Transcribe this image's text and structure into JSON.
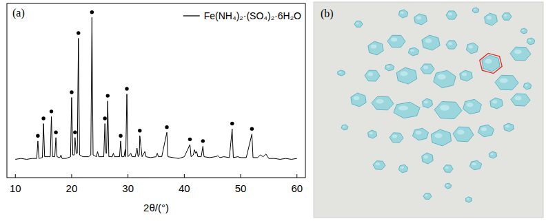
{
  "chart_data": {
    "type": "line",
    "title": "(a)",
    "x_label": "2θ/(°)",
    "xlim": [
      8.5,
      61.5
    ],
    "ylim": [
      0,
      100
    ],
    "xticks": [
      10,
      20,
      30,
      40,
      50,
      60
    ],
    "tick_labels": "x",
    "legend": "upper right",
    "grid": false,
    "series": [
      {
        "name": "Fe(NH₄)₂·(SO₄)₂·6H₂O",
        "color": "#000000",
        "line_style": "solid",
        "x": [
          10,
          11,
          12,
          13,
          13.8,
          14.0,
          14.2,
          14.8,
          15.0,
          15.2,
          16.2,
          16.4,
          16.6,
          17.0,
          17.2,
          17.4,
          17.9,
          18.1,
          18.3,
          19.0,
          19.8,
          20.0,
          20.2,
          20.45,
          20.6,
          20.8,
          21.0,
          21.2,
          21.4,
          22.0,
          23.0,
          23.4,
          23.6,
          23.8,
          24.4,
          24.6,
          24.8,
          25.7,
          25.9,
          26.1,
          26.2,
          26.4,
          26.6,
          27.2,
          27.4,
          27.6,
          28.5,
          28.7,
          28.9,
          29.3,
          29.5,
          29.6,
          29.8,
          30.0,
          30.5,
          30.7,
          31.3,
          31.6,
          31.8,
          32.0,
          32.1,
          32.3,
          32.5,
          33.0,
          33.2,
          34.0,
          35.0,
          35.2,
          35.4,
          36.0,
          36.9,
          37.1,
          38.0,
          39.0,
          40.0,
          41.0,
          41.2,
          41.6,
          41.8,
          42.0,
          42.2,
          42.4,
          43.0,
          43.3,
          43.5,
          44.5,
          45.5,
          46.0,
          46.3,
          47.0,
          48.0,
          48.5,
          48.7,
          49.5,
          50.0,
          51.0,
          52.0,
          52.2,
          53.0,
          53.5,
          54.0,
          54.5,
          55.0,
          56.0,
          57.0,
          58.0,
          59.0,
          60.0
        ],
        "values": [
          10.5,
          11,
          10.5,
          11,
          11,
          21,
          11,
          11.5,
          31,
          12,
          12,
          35,
          12,
          12,
          23,
          12,
          11.5,
          13,
          11,
          11,
          12,
          46,
          13,
          13,
          23,
          14,
          14,
          80,
          13,
          12,
          12,
          13,
          92,
          13,
          12,
          15,
          12,
          12,
          31,
          14,
          14,
          44,
          12,
          12,
          14,
          12,
          12,
          21,
          12,
          12,
          16,
          12,
          48,
          12,
          14,
          12,
          12,
          17,
          12,
          13,
          24,
          18,
          12,
          15,
          12,
          11.5,
          12,
          14,
          12,
          12,
          26,
          12,
          11.5,
          11,
          12,
          19,
          12,
          13,
          16,
          14,
          15,
          12,
          12,
          18,
          12,
          11.5,
          12,
          12.5,
          11.5,
          12,
          11.5,
          28,
          11.5,
          12,
          11.5,
          11.5,
          25,
          11.5,
          11.5,
          13,
          12,
          13.5,
          11,
          11,
          10.5,
          11,
          10.5,
          11
        ]
      },
      {
        "type": "scatter",
        "marker": "circle",
        "color": "#000000",
        "x": [
          14.0,
          15.0,
          16.4,
          17.2,
          20.0,
          20.6,
          21.2,
          23.6,
          25.9,
          26.4,
          28.7,
          29.8,
          32.1,
          36.9,
          41.0,
          43.3,
          48.5,
          52.0
        ],
        "values": [
          24,
          34,
          38,
          26,
          49,
          26,
          83,
          95,
          34,
          47,
          24,
          51,
          27,
          29,
          22,
          21,
          31,
          28
        ]
      }
    ]
  },
  "photo": {
    "label": "(b)"
  }
}
